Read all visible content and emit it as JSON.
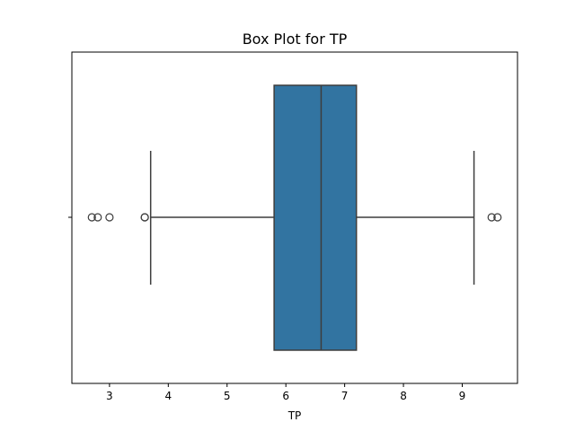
{
  "chart_data": {
    "type": "box",
    "title": "Box Plot for TP",
    "xlabel": "TP",
    "ylabel": "",
    "xlim": [
      2.36,
      9.94
    ],
    "xticks": [
      3,
      4,
      5,
      6,
      7,
      8,
      9
    ],
    "box": {
      "q1": 5.8,
      "median": 6.6,
      "q3": 7.2,
      "whisker_low": 3.7,
      "whisker_high": 9.2,
      "outliers": [
        2.7,
        2.8,
        3.0,
        3.6,
        3.6,
        9.5,
        9.6
      ]
    },
    "colors": {
      "box_fill": "#3274a1",
      "line": "#3d3d3d"
    },
    "grid": false,
    "legend": "none"
  }
}
